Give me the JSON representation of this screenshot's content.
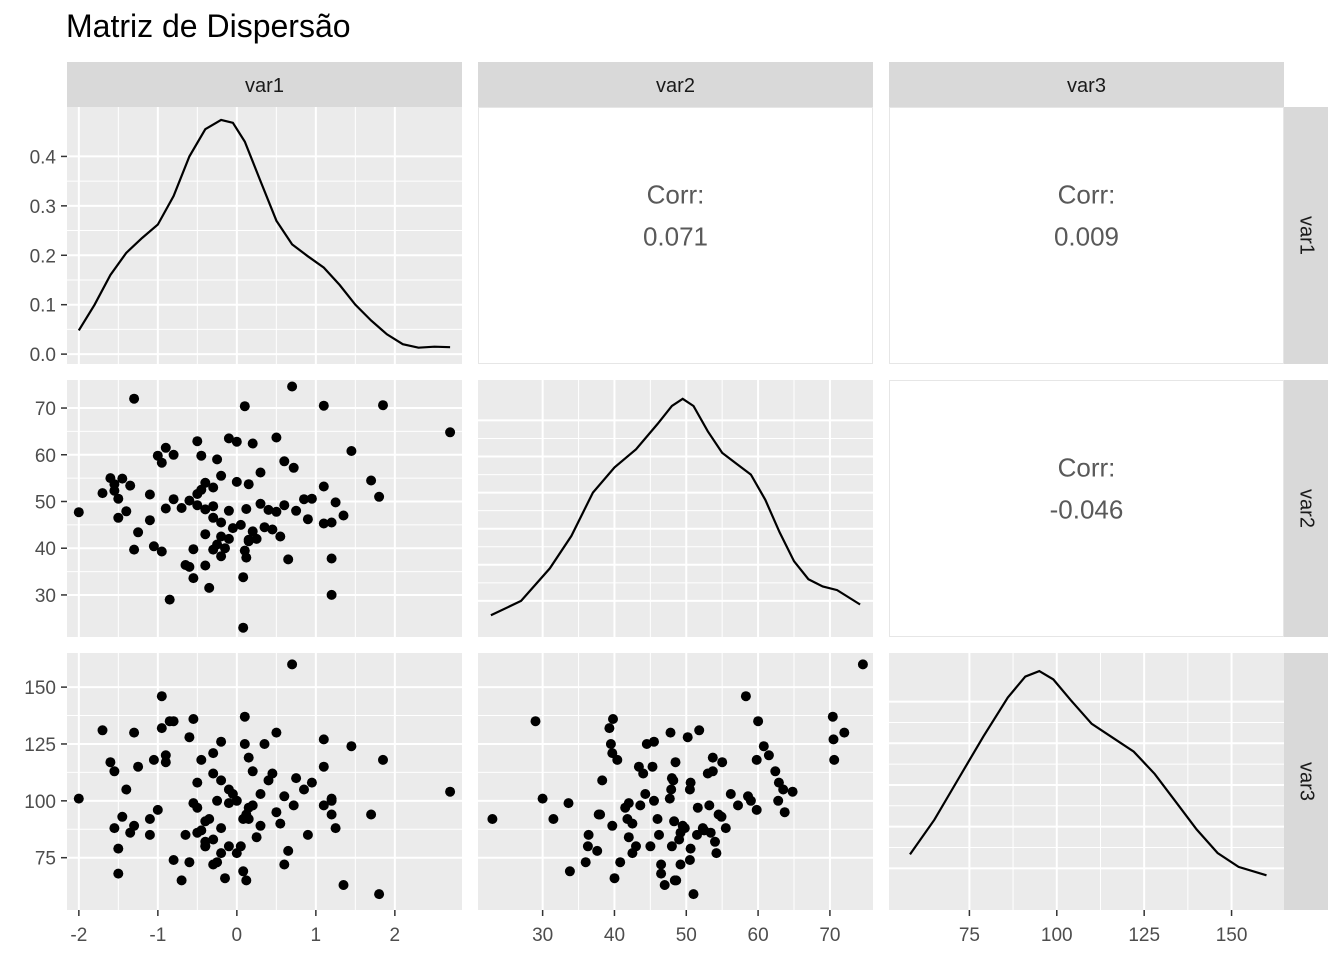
{
  "title": "Matriz de Dispersão",
  "chart_data": {
    "type": "scatter",
    "variables": [
      "var1",
      "var2",
      "var3"
    ],
    "title": "Matriz de Dispersão",
    "grid": true,
    "axes": {
      "var1": {
        "ticks": [
          -2,
          -1,
          0,
          1,
          2
        ],
        "tick_labels": [
          "-2",
          "-1",
          "0",
          "1",
          "2"
        ],
        "range": [
          -2.15,
          2.85
        ]
      },
      "var2": {
        "ticks": [
          30,
          40,
          50,
          60,
          70
        ],
        "tick_labels": [
          "30",
          "40",
          "50",
          "60",
          "70"
        ],
        "range": [
          21,
          76
        ]
      },
      "var3": {
        "ticks": [
          75,
          100,
          125,
          150
        ],
        "tick_labels": [
          "75",
          "100",
          "125",
          "150"
        ],
        "range": [
          52,
          165
        ]
      }
    },
    "density_axis": {
      "ticks": [
        0.0,
        0.1,
        0.2,
        0.3,
        0.4
      ],
      "tick_labels": [
        "0.0",
        "0.1",
        "0.2",
        "0.3",
        "0.4"
      ],
      "range": [
        -0.02,
        0.5
      ]
    },
    "correlations": [
      {
        "row": "var1",
        "col": "var2",
        "label": "Corr:",
        "value": "0.071"
      },
      {
        "row": "var1",
        "col": "var3",
        "label": "Corr:",
        "value": "0.009"
      },
      {
        "row": "var2",
        "col": "var3",
        "label": "Corr:",
        "value": "-0.046"
      }
    ],
    "densities": {
      "var1": [
        [
          -2.0,
          0.048
        ],
        [
          -1.8,
          0.1
        ],
        [
          -1.6,
          0.16
        ],
        [
          -1.4,
          0.205
        ],
        [
          -1.2,
          0.235
        ],
        [
          -1.0,
          0.262
        ],
        [
          -0.8,
          0.32
        ],
        [
          -0.6,
          0.4
        ],
        [
          -0.4,
          0.455
        ],
        [
          -0.2,
          0.474
        ],
        [
          -0.05,
          0.468
        ],
        [
          0.1,
          0.43
        ],
        [
          0.3,
          0.35
        ],
        [
          0.5,
          0.27
        ],
        [
          0.7,
          0.222
        ],
        [
          0.9,
          0.198
        ],
        [
          1.1,
          0.175
        ],
        [
          1.3,
          0.14
        ],
        [
          1.5,
          0.1
        ],
        [
          1.7,
          0.068
        ],
        [
          1.9,
          0.04
        ],
        [
          2.1,
          0.02
        ],
        [
          2.3,
          0.013
        ],
        [
          2.5,
          0.015
        ],
        [
          2.7,
          0.014
        ]
      ],
      "var2": [
        [
          22.8,
          0.006
        ],
        [
          27,
          0.01
        ],
        [
          31,
          0.019
        ],
        [
          34,
          0.028
        ],
        [
          37,
          0.04
        ],
        [
          40,
          0.047
        ],
        [
          43,
          0.052
        ],
        [
          46,
          0.059
        ],
        [
          48,
          0.064
        ],
        [
          49.5,
          0.066
        ],
        [
          51,
          0.064
        ],
        [
          53,
          0.057
        ],
        [
          55,
          0.051
        ],
        [
          57,
          0.048
        ],
        [
          59,
          0.045
        ],
        [
          61,
          0.038
        ],
        [
          63,
          0.029
        ],
        [
          65,
          0.021
        ],
        [
          67,
          0.016
        ],
        [
          69,
          0.014
        ],
        [
          71,
          0.013
        ],
        [
          74.2,
          0.009
        ]
      ]
    },
    "density_var3": [
      [
        58,
        0.004
      ],
      [
        65,
        0.0065
      ],
      [
        72,
        0.0095
      ],
      [
        79,
        0.0125
      ],
      [
        86,
        0.0153
      ],
      [
        91,
        0.0168
      ],
      [
        95,
        0.0172
      ],
      [
        99,
        0.0166
      ],
      [
        104,
        0.0151
      ],
      [
        110,
        0.0134
      ],
      [
        116,
        0.0124
      ],
      [
        122,
        0.0114
      ],
      [
        128,
        0.0098
      ],
      [
        134,
        0.0078
      ],
      [
        140,
        0.0058
      ],
      [
        146,
        0.0041
      ],
      [
        152,
        0.0031
      ],
      [
        160,
        0.0025
      ]
    ],
    "points": [
      [
        -2.0,
        47.7,
        101
      ],
      [
        2.7,
        64.8,
        104
      ],
      [
        -1.3,
        72.0,
        130
      ],
      [
        0.7,
        74.6,
        160
      ],
      [
        0.1,
        70.4,
        137
      ],
      [
        1.1,
        70.5,
        127
      ],
      [
        1.85,
        70.6,
        118
      ],
      [
        1.45,
        60.8,
        124
      ],
      [
        1.7,
        54.5,
        94
      ],
      [
        1.8,
        51.0,
        59
      ],
      [
        -1.0,
        59.8,
        96
      ],
      [
        -0.9,
        61.5,
        120
      ],
      [
        -0.95,
        58.3,
        146
      ],
      [
        -0.8,
        60.0,
        135
      ],
      [
        -0.5,
        62.9,
        108
      ],
      [
        -0.45,
        59.8,
        118
      ],
      [
        -0.1,
        63.5,
        105
      ],
      [
        0.0,
        62.8,
        100
      ],
      [
        0.2,
        62.4,
        113
      ],
      [
        0.5,
        63.7,
        95
      ],
      [
        0.6,
        58.6,
        102
      ],
      [
        0.72,
        57.2,
        98
      ],
      [
        0.3,
        56.2,
        103
      ],
      [
        -0.2,
        55.5,
        88
      ],
      [
        -0.4,
        54.0,
        82
      ],
      [
        -1.6,
        55.0,
        117
      ],
      [
        -1.55,
        53.7,
        113
      ],
      [
        -1.45,
        54.9,
        93
      ],
      [
        -1.35,
        53.4,
        86
      ],
      [
        -1.7,
        51.8,
        131
      ],
      [
        -1.5,
        50.6,
        79
      ],
      [
        -1.55,
        52.3,
        88
      ],
      [
        -0.8,
        50.5,
        74
      ],
      [
        -0.6,
        50.2,
        128
      ],
      [
        -0.5,
        51.6,
        97
      ],
      [
        -0.5,
        49.2,
        86
      ],
      [
        -0.4,
        48.3,
        91
      ],
      [
        -0.3,
        53.0,
        112
      ],
      [
        0.0,
        54.2,
        77
      ],
      [
        0.15,
        53.7,
        119
      ],
      [
        0.85,
        50.5,
        105
      ],
      [
        0.95,
        50.6,
        108
      ],
      [
        1.1,
        53.2,
        98
      ],
      [
        1.25,
        49.8,
        88
      ],
      [
        1.35,
        47.0,
        63
      ],
      [
        0.6,
        49.2,
        72
      ],
      [
        0.4,
        48.2,
        109
      ],
      [
        0.12,
        48.4,
        65
      ],
      [
        -0.3,
        49.0,
        83
      ],
      [
        -1.4,
        47.9,
        105
      ],
      [
        -1.5,
        46.5,
        68
      ],
      [
        -1.1,
        46.0,
        92
      ],
      [
        -0.9,
        48.5,
        117
      ],
      [
        -0.4,
        43.0,
        80
      ],
      [
        -0.2,
        42.5,
        77
      ],
      [
        0.15,
        41.5,
        97
      ],
      [
        0.25,
        42.0,
        84
      ],
      [
        0.45,
        44.0,
        112
      ],
      [
        0.55,
        42.5,
        90
      ],
      [
        0.9,
        46.2,
        85
      ],
      [
        1.1,
        45.3,
        115
      ],
      [
        1.2,
        45.5,
        100
      ],
      [
        -1.25,
        43.4,
        115
      ],
      [
        -1.3,
        39.7,
        89
      ],
      [
        -1.05,
        40.4,
        118
      ],
      [
        -0.95,
        39.3,
        132
      ],
      [
        -0.55,
        39.8,
        136
      ],
      [
        -0.3,
        39.7,
        121
      ],
      [
        -0.25,
        40.8,
        73
      ],
      [
        -0.2,
        38.3,
        109
      ],
      [
        0.1,
        39.5,
        125
      ],
      [
        0.12,
        38.0,
        94
      ],
      [
        0.15,
        41.8,
        92
      ],
      [
        0.65,
        37.6,
        78
      ],
      [
        1.2,
        37.8,
        94
      ],
      [
        -0.65,
        36.4,
        85
      ],
      [
        -0.55,
        33.6,
        99
      ],
      [
        -0.4,
        36.3,
        80
      ],
      [
        -0.35,
        31.5,
        92
      ],
      [
        -0.85,
        29.0,
        135
      ],
      [
        1.2,
        30.0,
        101
      ],
      [
        0.08,
        33.8,
        69
      ],
      [
        0.08,
        23.0,
        92
      ],
      [
        -0.6,
        36.0,
        73
      ],
      [
        -0.15,
        40.0,
        66
      ],
      [
        0.35,
        44.5,
        125
      ],
      [
        -0.1,
        42.0,
        99
      ],
      [
        -0.2,
        45.5,
        126
      ],
      [
        0.05,
        45.0,
        80
      ],
      [
        0.2,
        43.6,
        98
      ],
      [
        -0.1,
        48.0,
        80
      ],
      [
        -0.45,
        52.5,
        87
      ],
      [
        -0.7,
        48.6,
        65
      ],
      [
        0.3,
        49.5,
        89
      ],
      [
        -0.3,
        46.5,
        72
      ],
      [
        -1.1,
        51.5,
        85
      ],
      [
        0.5,
        47.8,
        130
      ],
      [
        -0.05,
        44.3,
        103
      ],
      [
        0.75,
        48.0,
        110
      ],
      [
        -0.25,
        59.0,
        100
      ]
    ]
  }
}
